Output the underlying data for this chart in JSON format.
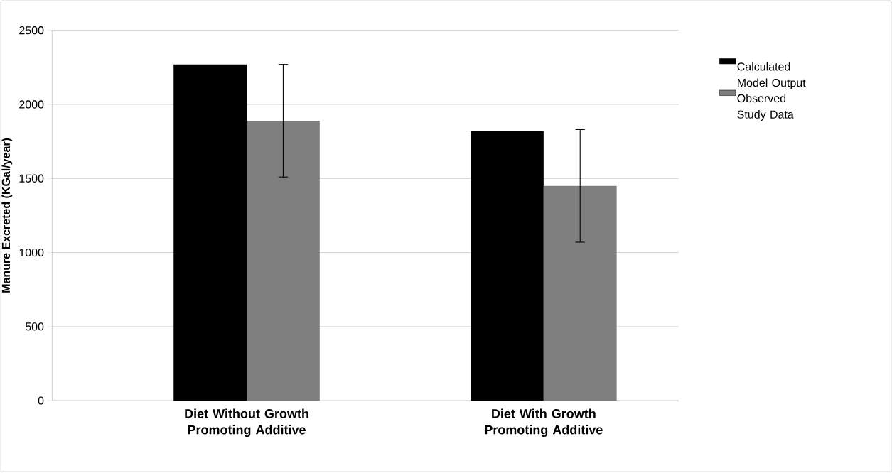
{
  "chart_data": {
    "type": "bar",
    "ylabel": "Manure Excreted (KGal/year)",
    "categories": [
      "Diet Without Growth Promoting Additive",
      "Diet With Growth Promoting Additive"
    ],
    "series": [
      {
        "name": "Calculated Model Output",
        "color": "#000000",
        "values": [
          2270,
          1820
        ]
      },
      {
        "name": "Observed Study Data",
        "color": "#7f7f7f",
        "values": [
          1890,
          1450
        ],
        "errors": [
          380,
          380
        ]
      }
    ],
    "ylim": [
      0,
      2500
    ],
    "yticks": [
      0,
      500,
      1000,
      1500,
      2000,
      2500
    ],
    "grid": "y",
    "legend": "right"
  }
}
